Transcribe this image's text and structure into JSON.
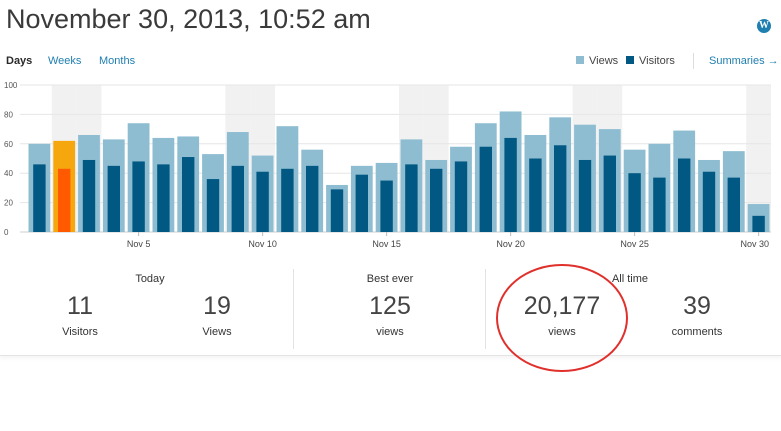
{
  "header": {
    "title": "November 30, 2013, 10:52 am",
    "logo_icon": "wordpress-logo-icon"
  },
  "tabs": [
    {
      "label": "Days",
      "active": true
    },
    {
      "label": "Weeks",
      "active": false
    },
    {
      "label": "Months",
      "active": false
    }
  ],
  "legend": [
    {
      "label": "Views",
      "color": "#8ebdd2"
    },
    {
      "label": "Visitors",
      "color": "#005883"
    }
  ],
  "summaries": {
    "label": "Summaries →"
  },
  "chart_data": {
    "type": "bar",
    "categories": [
      "Nov 1",
      "Nov 2",
      "Nov 3",
      "Nov 4",
      "Nov 5",
      "Nov 6",
      "Nov 7",
      "Nov 8",
      "Nov 9",
      "Nov 10",
      "Nov 11",
      "Nov 12",
      "Nov 13",
      "Nov 14",
      "Nov 15",
      "Nov 16",
      "Nov 17",
      "Nov 18",
      "Nov 19",
      "Nov 20",
      "Nov 21",
      "Nov 22",
      "Nov 23",
      "Nov 24",
      "Nov 25",
      "Nov 26",
      "Nov 27",
      "Nov 28",
      "Nov 29",
      "Nov 30"
    ],
    "tick_labels": [
      "Nov 5",
      "Nov 10",
      "Nov 15",
      "Nov 20",
      "Nov 25",
      "Nov 30"
    ],
    "highlighted_category": "Nov 2",
    "weekend_shaded_categories": [
      "Nov 2",
      "Nov 3",
      "Nov 9",
      "Nov 10",
      "Nov 16",
      "Nov 17",
      "Nov 23",
      "Nov 24",
      "Nov 30"
    ],
    "series": [
      {
        "name": "Views",
        "color": "#8ebdd2",
        "highlight_color": "#f7a70e",
        "values": [
          60,
          62,
          66,
          63,
          74,
          64,
          65,
          53,
          68,
          52,
          72,
          56,
          32,
          45,
          47,
          63,
          49,
          58,
          74,
          82,
          66,
          78,
          73,
          70,
          56,
          60,
          69,
          49,
          55,
          19
        ]
      },
      {
        "name": "Visitors",
        "color": "#005883",
        "highlight_color": "#ff5a00",
        "values": [
          46,
          43,
          49,
          45,
          48,
          46,
          51,
          36,
          45,
          41,
          43,
          45,
          29,
          39,
          35,
          46,
          43,
          48,
          58,
          64,
          50,
          59,
          49,
          52,
          40,
          37,
          50,
          41,
          37,
          11
        ]
      }
    ],
    "y_ticks": [
      0,
      20,
      40,
      60,
      80,
      100
    ],
    "ylim": [
      0,
      100
    ],
    "grid": true,
    "legend_position": "top-right"
  },
  "stats": {
    "today": {
      "label": "Today",
      "visitors_value": "11",
      "visitors_label": "Visitors",
      "views_value": "19",
      "views_label": "Views"
    },
    "best_ever": {
      "label": "Best ever",
      "value": "125",
      "unit": "views"
    },
    "all_time": {
      "label": "All time",
      "views_value": "20,177",
      "views_label": "views",
      "comments_value": "39",
      "comments_label": "comments"
    }
  },
  "annotation": {
    "color": "#e0302c",
    "shape": "circle around all-time views"
  }
}
